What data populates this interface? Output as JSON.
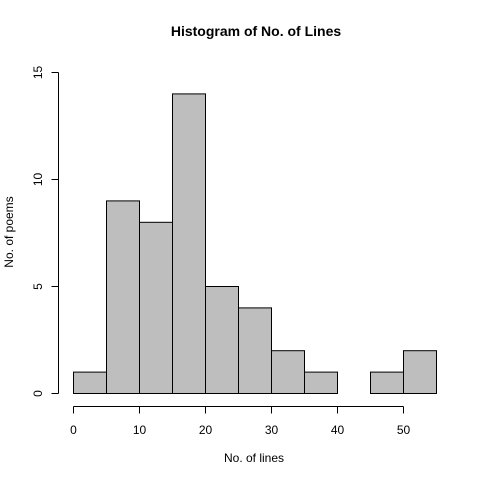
{
  "chart_data": {
    "type": "bar",
    "title": "Histogram of No. of Lines",
    "xlabel": "No. of lines",
    "ylabel": "No. of poems",
    "bins": [
      {
        "x0": 0,
        "x1": 5,
        "count": 1
      },
      {
        "x0": 5,
        "x1": 10,
        "count": 9
      },
      {
        "x0": 10,
        "x1": 15,
        "count": 8
      },
      {
        "x0": 15,
        "x1": 20,
        "count": 14
      },
      {
        "x0": 20,
        "x1": 25,
        "count": 5
      },
      {
        "x0": 25,
        "x1": 30,
        "count": 4
      },
      {
        "x0": 30,
        "x1": 35,
        "count": 2
      },
      {
        "x0": 35,
        "x1": 40,
        "count": 1
      },
      {
        "x0": 40,
        "x1": 45,
        "count": 0
      },
      {
        "x0": 45,
        "x1": 50,
        "count": 1
      },
      {
        "x0": 50,
        "x1": 55,
        "count": 2
      }
    ],
    "xticks": [
      "0",
      "10",
      "20",
      "30",
      "40",
      "50"
    ],
    "yticks": [
      "0",
      "5",
      "10",
      "15"
    ],
    "xlim": [
      0,
      55
    ],
    "ylim": [
      0,
      15
    ],
    "grid": false,
    "colors": {
      "bar_fill": "#bebebe",
      "bar_stroke": "#000000"
    }
  }
}
